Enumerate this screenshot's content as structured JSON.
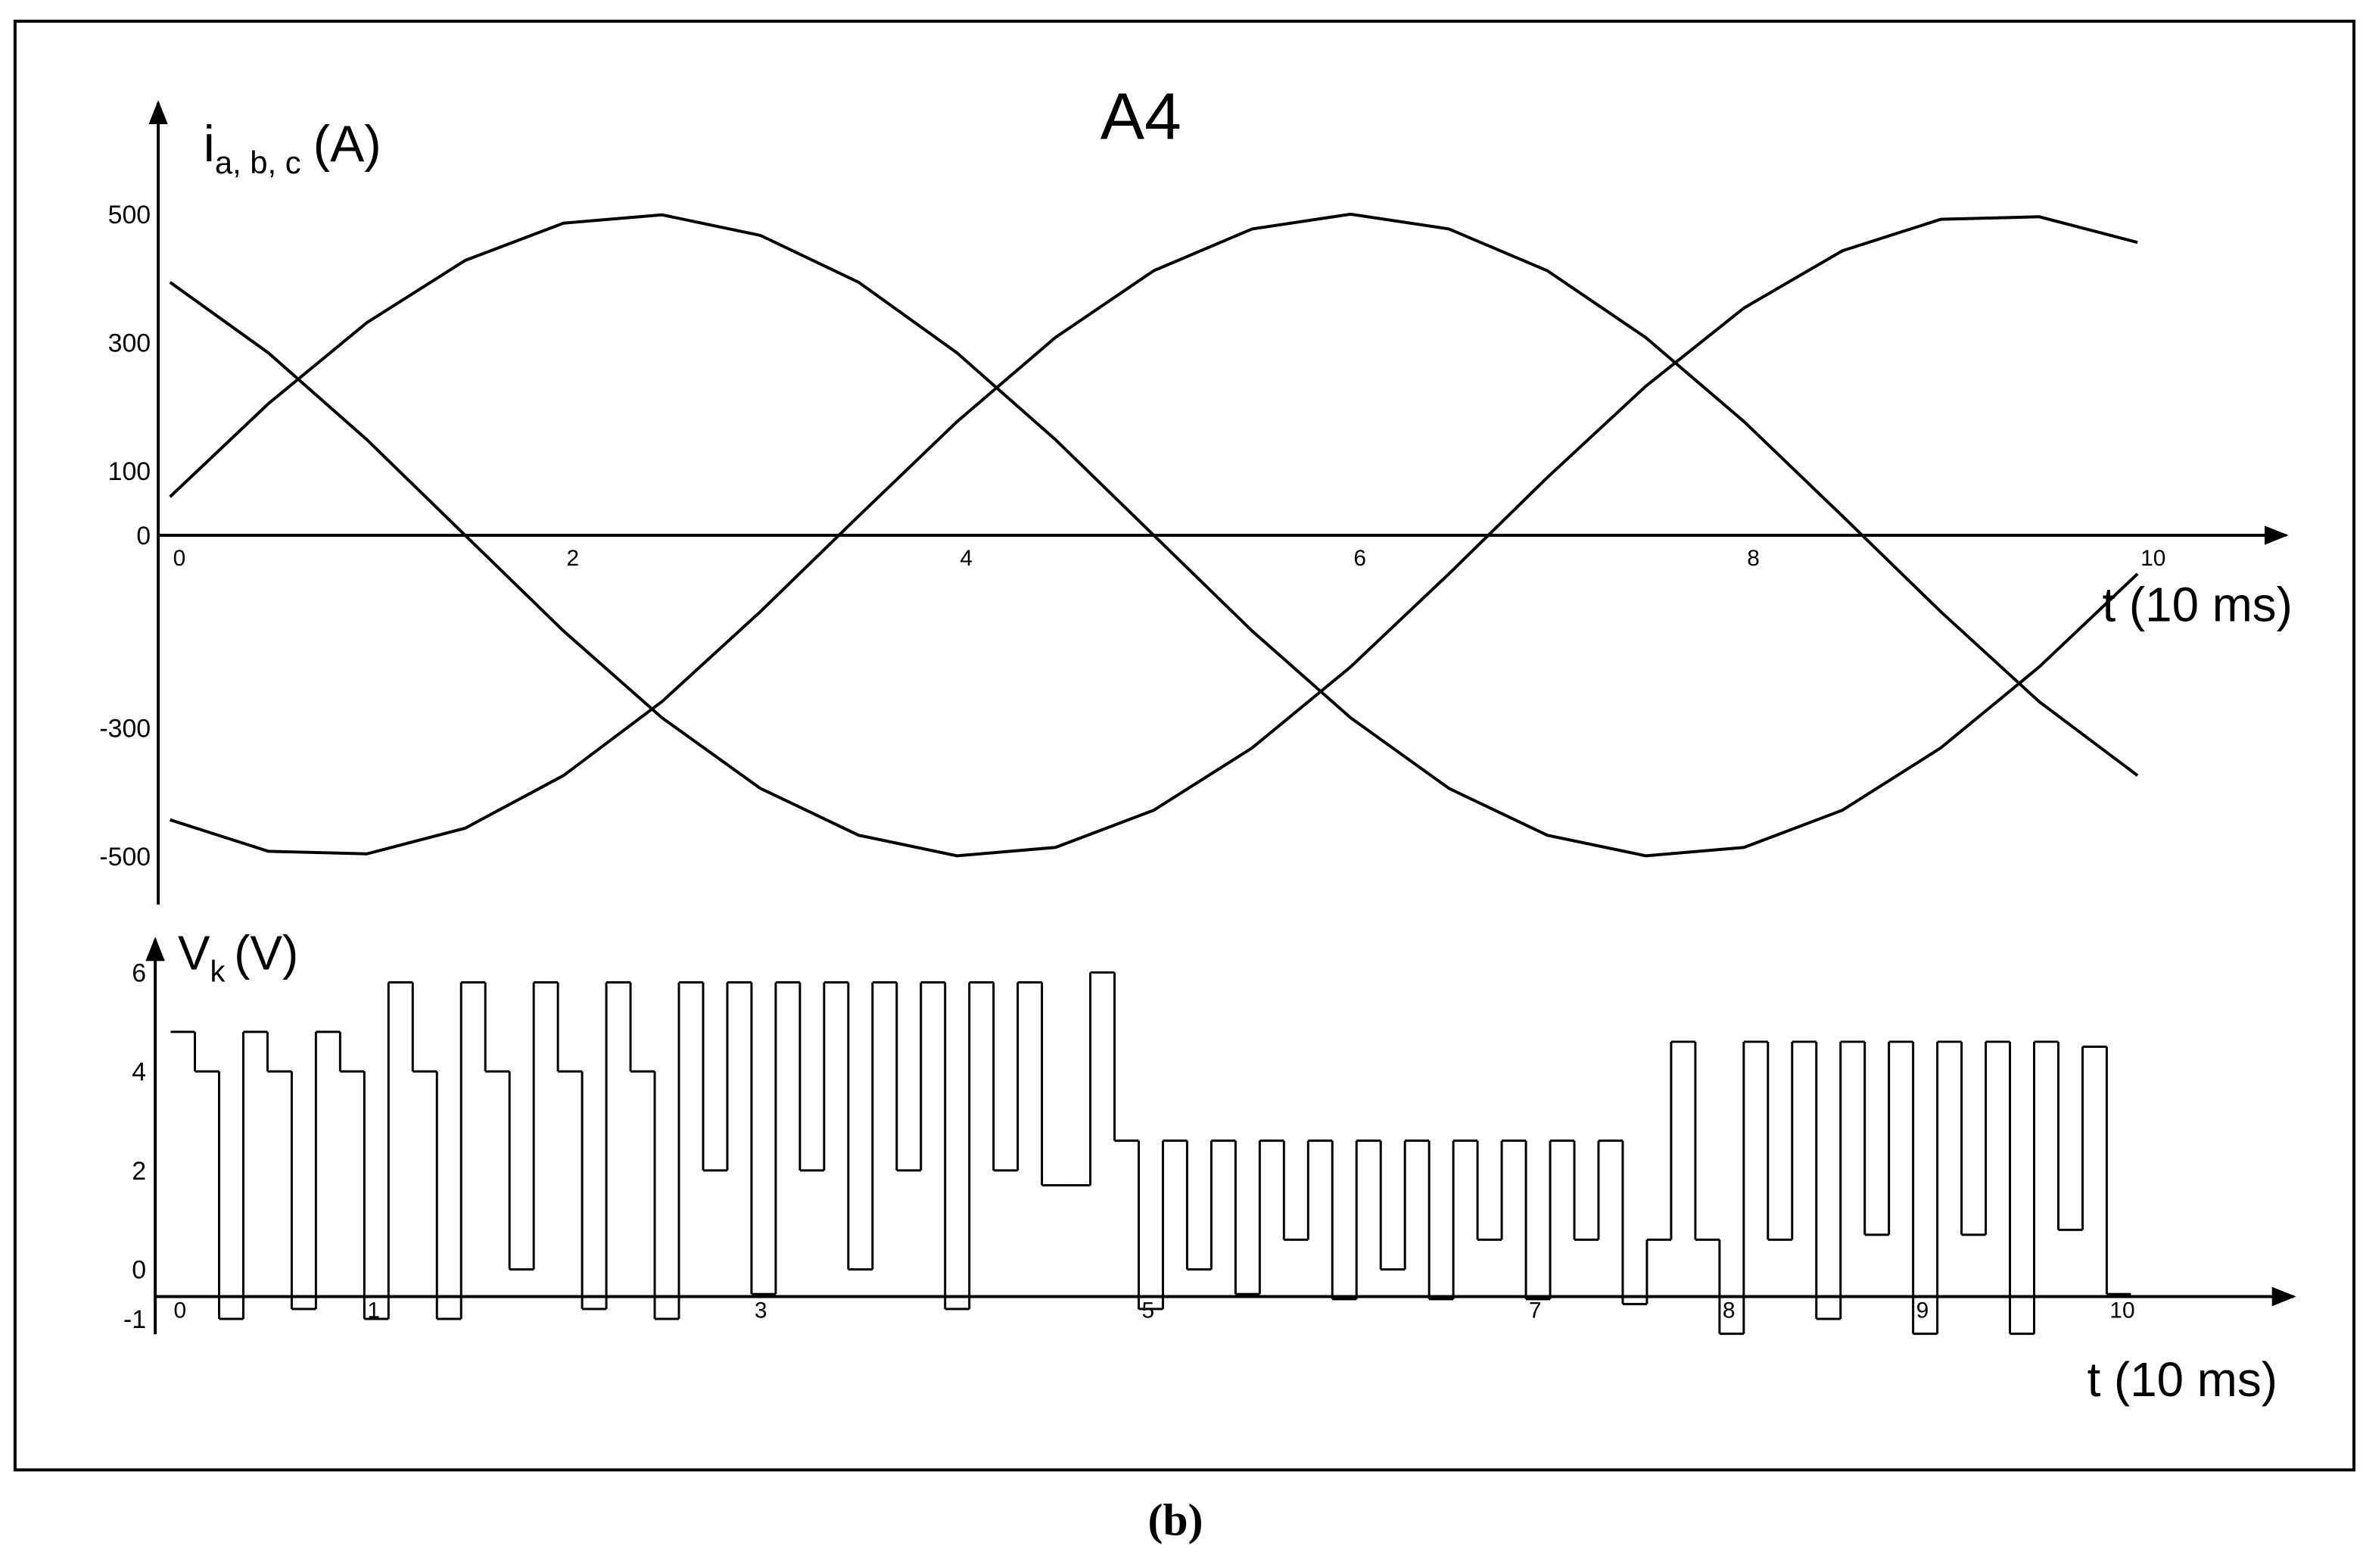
{
  "caption": "(b)",
  "chart_data": [
    {
      "type": "line",
      "title": "A4",
      "y_label": "i",
      "y_label_subscript": "a, b, c",
      "y_label_unit": "(A)",
      "x_label": "t (10 ms)",
      "x": [
        0,
        0.5,
        1,
        1.5,
        2,
        2.5,
        3,
        3.5,
        4,
        4.5,
        5,
        5.5,
        6,
        6.5,
        7,
        7.5,
        8,
        8.5,
        9,
        9.5,
        10
      ],
      "series": [
        {
          "color": "#000000",
          "values": [
            394,
            284,
            149,
            0,
            -149,
            -284,
            -394,
            -467,
            -499,
            -486,
            -428,
            -331,
            -205,
            -60,
            90,
            232,
            354,
            443,
            492,
            496,
            456
          ]
        },
        {
          "color": "#000000",
          "values": [
            60,
            205,
            331,
            428,
            486,
            499,
            467,
            394,
            284,
            149,
            0,
            -149,
            -284,
            -394,
            -467,
            -499,
            -486,
            -428,
            -331,
            -205,
            -60
          ]
        },
        {
          "color": "#000000",
          "values": [
            -443,
            -492,
            -496,
            -456,
            -374,
            -259,
            -119,
            30,
            177,
            308,
            412,
            477,
            500,
            477,
            412,
            308,
            177,
            30,
            -119,
            -259,
            -374
          ]
        }
      ],
      "xlim": [
        -0.06,
        10.74
      ],
      "ylim": [
        -575,
        669
      ],
      "xticks": [
        0,
        2,
        4,
        6,
        8,
        10
      ],
      "yticks": [
        -500,
        -300,
        0,
        100,
        300,
        500
      ]
    },
    {
      "type": "step",
      "y_label": "V",
      "y_label_subscript": "k",
      "y_label_unit": "(V)",
      "x_label": "t (10 ms)",
      "x": [
        0,
        0.125,
        0.25,
        0.375,
        0.5,
        0.625,
        0.75,
        0.875,
        1,
        1.125,
        1.25,
        1.375,
        1.5,
        1.625,
        1.75,
        1.875,
        2,
        2.125,
        2.25,
        2.375,
        2.5,
        2.625,
        2.75,
        2.875,
        3,
        3.125,
        3.25,
        3.375,
        3.5,
        3.625,
        3.75,
        3.875,
        4,
        4.125,
        4.25,
        4.375,
        4.5,
        4.625,
        4.75,
        4.875,
        5,
        5.125,
        5.25,
        5.375,
        5.5,
        5.625,
        5.75,
        5.875,
        6,
        6.125,
        6.25,
        6.375,
        6.5,
        6.625,
        6.75,
        6.875,
        7,
        7.125,
        7.25,
        7.375,
        7.5,
        7.625,
        7.75,
        7.875,
        8,
        8.125,
        8.25,
        8.375,
        8.5,
        8.625,
        8.75,
        8.875,
        9,
        9.125,
        9.25,
        9.375,
        9.5,
        9.625,
        9.75,
        9.875,
        10
      ],
      "series": [
        {
          "color": "#000000",
          "values": [
            4.8,
            4,
            -1,
            4.8,
            4,
            -0.8,
            4.8,
            4,
            -1,
            5.8,
            4,
            -1,
            5.8,
            4,
            0,
            5.8,
            4,
            -0.8,
            5.8,
            4,
            -1,
            5.8,
            2,
            5.8,
            -0.5,
            5.8,
            2,
            5.8,
            0,
            5.8,
            2,
            5.8,
            -0.8,
            5.8,
            2,
            5.8,
            1.7,
            1.7,
            6,
            2.6,
            -0.8,
            2.6,
            0,
            2.6,
            -0.5,
            2.6,
            0.6,
            2.6,
            -0.6,
            2.6,
            0,
            2.6,
            -0.6,
            2.6,
            0.6,
            2.6,
            -0.6,
            2.6,
            0.6,
            2.6,
            -0.7,
            0.6,
            4.6,
            0.6,
            -1.3,
            4.6,
            0.6,
            4.6,
            -1,
            4.6,
            0.7,
            4.6,
            -1.3,
            4.6,
            0.7,
            4.6,
            -1.3,
            4.6,
            0.8,
            4.5,
            -0.5
          ]
        }
      ],
      "xlim": [
        -0.08,
        10.95
      ],
      "ylim": [
        -1.31,
        6.61
      ],
      "xticks": [
        0,
        1,
        3,
        5,
        7,
        8,
        9,
        10
      ],
      "yticks": [
        -1,
        0,
        2,
        4,
        6
      ]
    }
  ]
}
